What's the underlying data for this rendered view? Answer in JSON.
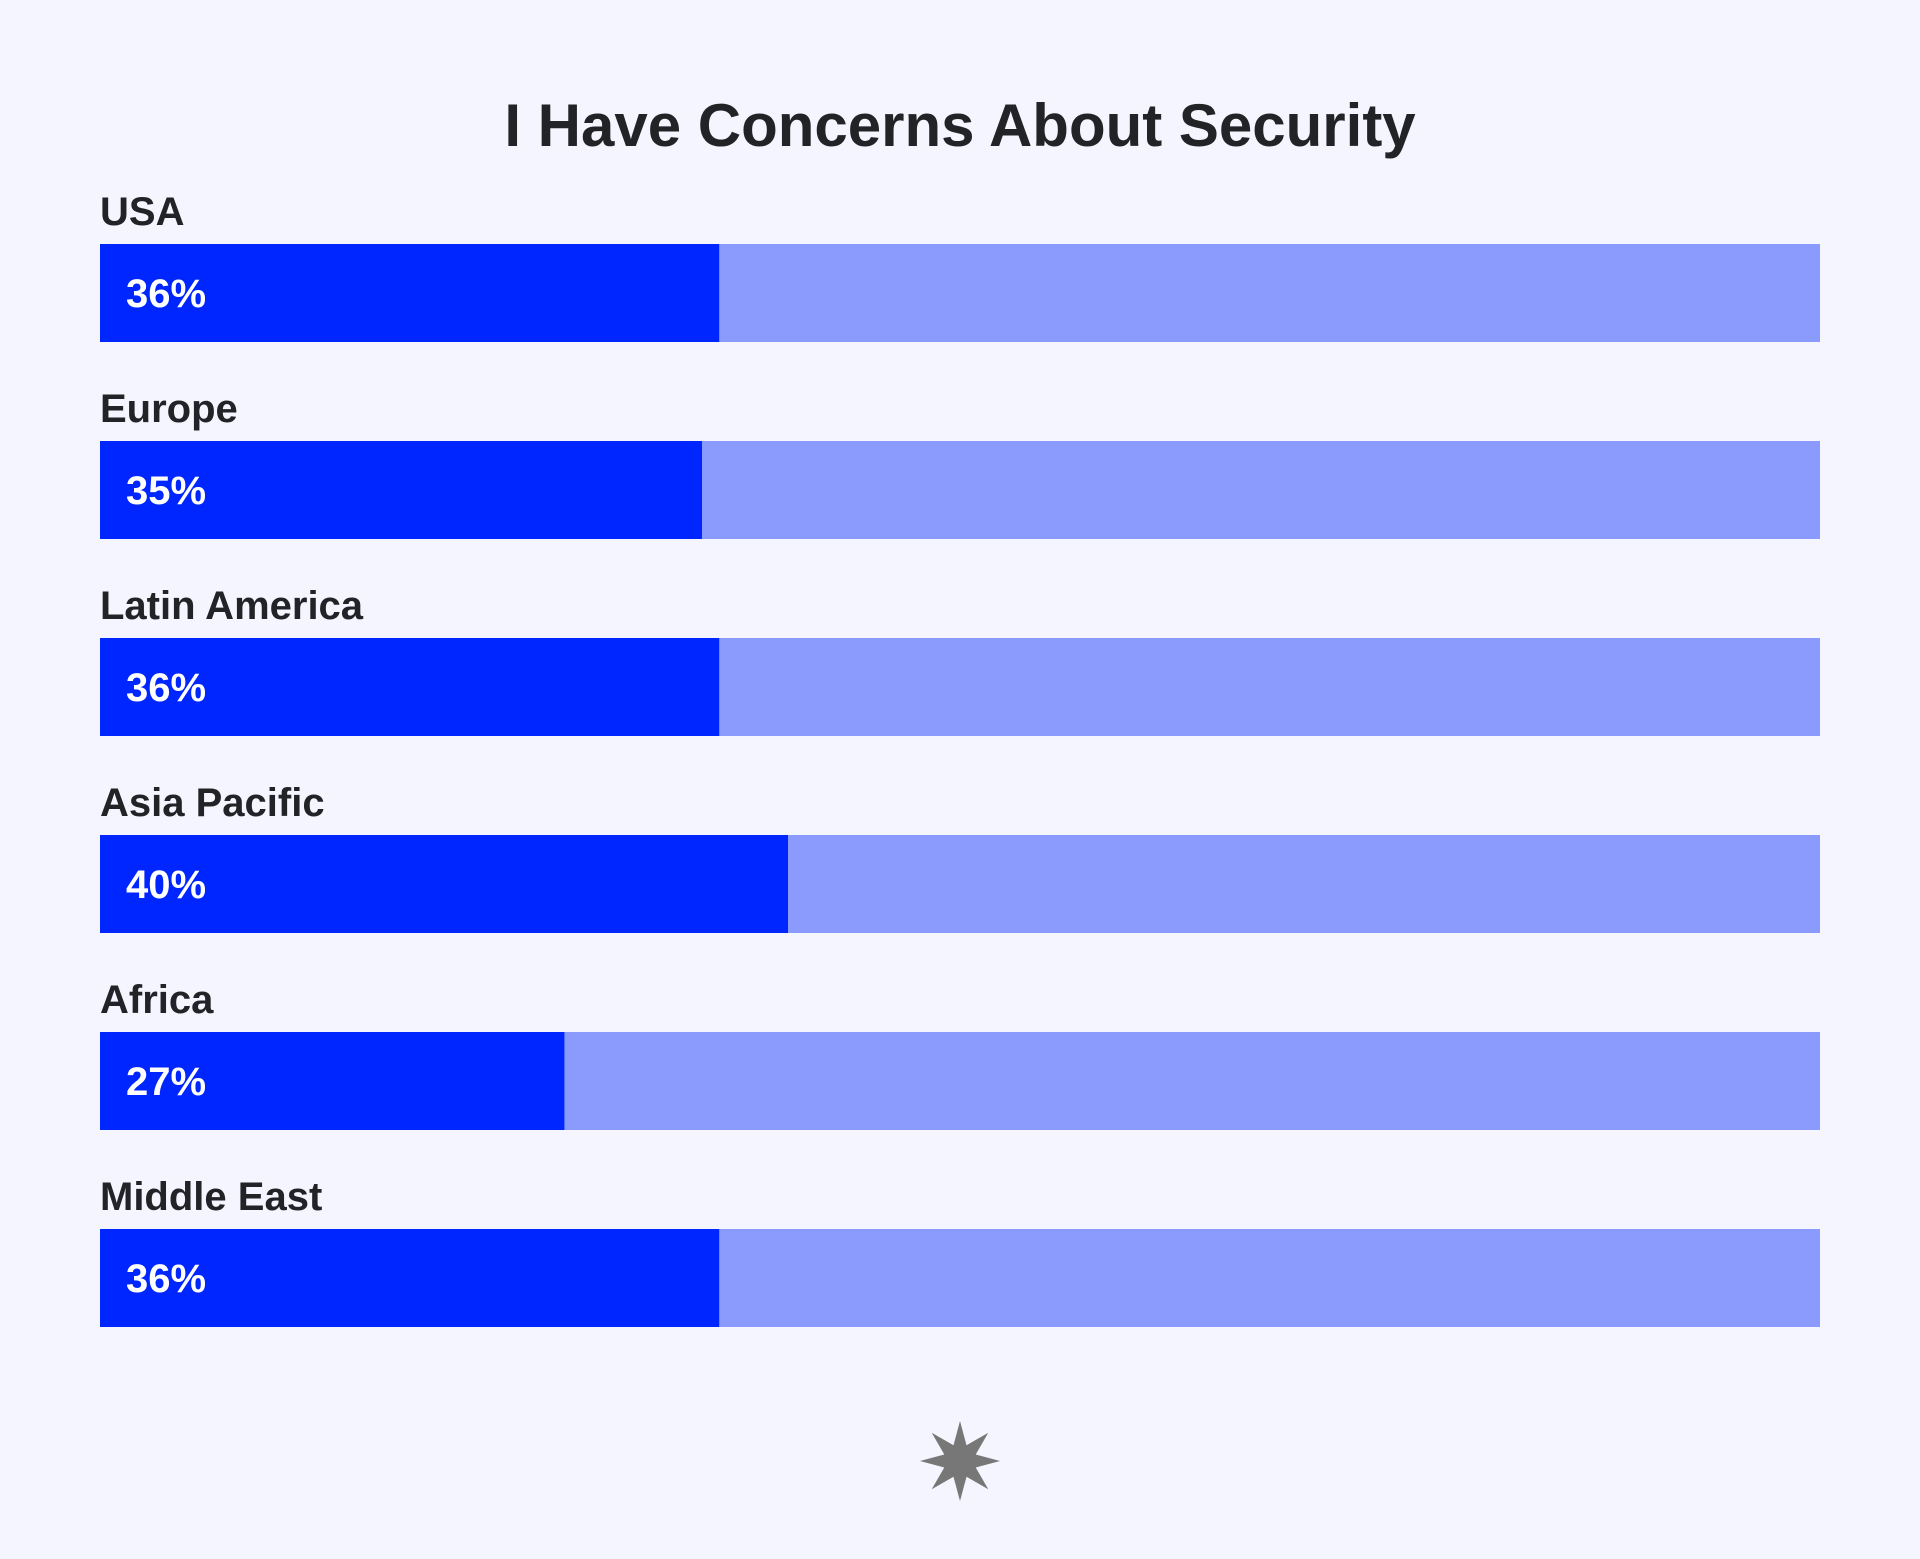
{
  "chart_data": {
    "type": "bar",
    "orientation": "horizontal",
    "title": "I Have Concerns About Security",
    "categories": [
      "USA",
      "Europe",
      "Latin America",
      "Asia Pacific",
      "Africa",
      "Middle East"
    ],
    "values": [
      36,
      35,
      36,
      40,
      27,
      36
    ],
    "value_labels": [
      "36%",
      "35%",
      "36%",
      "40%",
      "27%",
      "36%"
    ],
    "unit": "%",
    "xlim": [
      0,
      100
    ],
    "grid": false,
    "legend": "none",
    "colors": {
      "bar_fill": "#0026FF",
      "bar_track": "#8A9BFD",
      "background": "#F4F5FE",
      "text": "#212326",
      "value_text": "#FFFFFF"
    }
  },
  "logo": {
    "icon": "starburst-logo-icon",
    "color": "#777777"
  }
}
